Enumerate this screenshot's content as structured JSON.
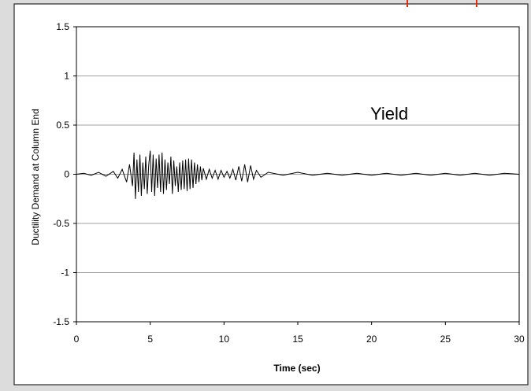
{
  "chart_data": {
    "type": "line",
    "title": "",
    "xlabel": "Time (sec)",
    "ylabel": "Ductility Demand at Column End",
    "annotation": "Yield",
    "xlim": [
      0,
      30
    ],
    "ylim": [
      -1.5,
      1.5
    ],
    "x_ticks": [
      0,
      5,
      10,
      15,
      20,
      25,
      30
    ],
    "y_ticks": [
      -1.5,
      -1,
      -0.5,
      0,
      0.5,
      1,
      1.5
    ],
    "x_tick_labels": [
      "0",
      "5",
      "10",
      "15",
      "20",
      "25",
      "30"
    ],
    "y_tick_labels": [
      "-1.5",
      "-1",
      "-0.5",
      "0",
      "0.5",
      "1",
      "1.5"
    ],
    "grid": "horizontal",
    "legend": "none",
    "colors": {
      "line": "#000000",
      "grid": "#a0a0a0",
      "plot_bg": "#ffffff",
      "page_bg": "#dcdcdc",
      "accent": "#e03010"
    },
    "series": [
      {
        "x": [
          0,
          0.5,
          1,
          1.5,
          2,
          2.5,
          2.8,
          3.1,
          3.4,
          3.6,
          3.8,
          3.9,
          4.0,
          4.1,
          4.2,
          4.3,
          4.4,
          4.5,
          4.6,
          4.7,
          4.8,
          4.9,
          5.0,
          5.1,
          5.2,
          5.3,
          5.4,
          5.5,
          5.6,
          5.7,
          5.8,
          5.9,
          6.0,
          6.1,
          6.2,
          6.3,
          6.4,
          6.5,
          6.6,
          6.7,
          6.8,
          6.9,
          7.0,
          7.1,
          7.2,
          7.3,
          7.4,
          7.5,
          7.6,
          7.7,
          7.8,
          7.9,
          8.0,
          8.1,
          8.2,
          8.3,
          8.4,
          8.5,
          8.6,
          8.8,
          9.0,
          9.2,
          9.4,
          9.6,
          9.8,
          10.0,
          10.2,
          10.4,
          10.6,
          10.8,
          11.0,
          11.2,
          11.4,
          11.6,
          11.8,
          12.0,
          12.2,
          12.5,
          13,
          14,
          15,
          16,
          17,
          18,
          19,
          20,
          21,
          22,
          23,
          24,
          25,
          26,
          27,
          28,
          29,
          30
        ],
        "y": [
          0,
          0.01,
          -0.01,
          0.02,
          -0.02,
          0.03,
          -0.04,
          0.05,
          -0.08,
          0.1,
          -0.12,
          0.22,
          -0.25,
          0.15,
          -0.18,
          0.2,
          -0.22,
          0.12,
          -0.15,
          0.18,
          -0.2,
          0.1,
          0.24,
          -0.18,
          0.2,
          -0.22,
          0.16,
          -0.14,
          0.2,
          -0.18,
          0.22,
          -0.2,
          0.15,
          -0.16,
          0.12,
          -0.1,
          0.18,
          -0.2,
          0.14,
          -0.12,
          0.08,
          -0.18,
          0.12,
          -0.16,
          0.14,
          -0.15,
          0.15,
          -0.17,
          0.16,
          -0.15,
          0.15,
          -0.14,
          0.12,
          -0.1,
          0.1,
          -0.08,
          0.08,
          -0.06,
          0.06,
          -0.05,
          0.05,
          -0.04,
          0.04,
          -0.05,
          0.04,
          -0.03,
          0.03,
          -0.04,
          0.05,
          -0.06,
          0.08,
          -0.07,
          0.1,
          -0.08,
          0.09,
          -0.05,
          0.04,
          -0.03,
          0.02,
          -0.01,
          0.02,
          -0.01,
          0.01,
          -0.01,
          0.01,
          -0.01,
          0.01,
          -0.01,
          0.01,
          -0.01,
          0.01,
          -0.01,
          0.01,
          -0.01,
          0.01,
          0
        ]
      }
    ]
  }
}
